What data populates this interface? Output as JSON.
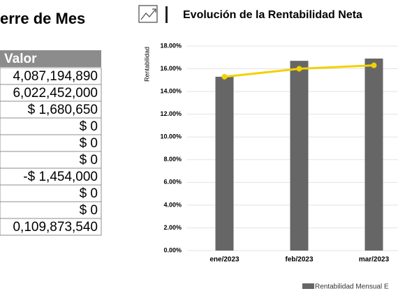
{
  "header": {
    "title": "erre de Mes"
  },
  "table": {
    "header": "Valor",
    "rows": [
      "4,087,194,890",
      "6,022,452,000",
      "$ 1,680,650",
      "$ 0",
      "$ 0",
      "$ 0",
      "-$ 1,454,000",
      "$ 0",
      "$ 0",
      "0,109,873,540"
    ]
  },
  "chart_data": {
    "type": "bar",
    "title": "Evolución de la Rentabilidad Neta",
    "y_label": "Rentabilidad",
    "categories": [
      "ene/2023",
      "feb/2023",
      "mar/2023"
    ],
    "series": [
      {
        "name": "Rentabilidad Mensual E",
        "type": "bar",
        "color": "#666666",
        "values": [
          15.3,
          16.7,
          16.9
        ]
      },
      {
        "type": "line",
        "color": "#f2d100",
        "values": [
          15.3,
          16.0,
          16.3
        ]
      }
    ],
    "ylim": [
      0,
      18
    ],
    "yticks": [
      {
        "value": 0,
        "label": "0.00%"
      },
      {
        "value": 2,
        "label": "2.00%"
      },
      {
        "value": 4,
        "label": "4.00%"
      },
      {
        "value": 6,
        "label": "6.00%"
      },
      {
        "value": 8,
        "label": "8.00%"
      },
      {
        "value": 10,
        "label": "10.00%"
      },
      {
        "value": 12,
        "label": "12.00%"
      },
      {
        "value": 14,
        "label": "14.00%"
      },
      {
        "value": 16,
        "label": "16.00%"
      },
      {
        "value": 18,
        "label": "18.00%"
      }
    ],
    "grid": true
  }
}
